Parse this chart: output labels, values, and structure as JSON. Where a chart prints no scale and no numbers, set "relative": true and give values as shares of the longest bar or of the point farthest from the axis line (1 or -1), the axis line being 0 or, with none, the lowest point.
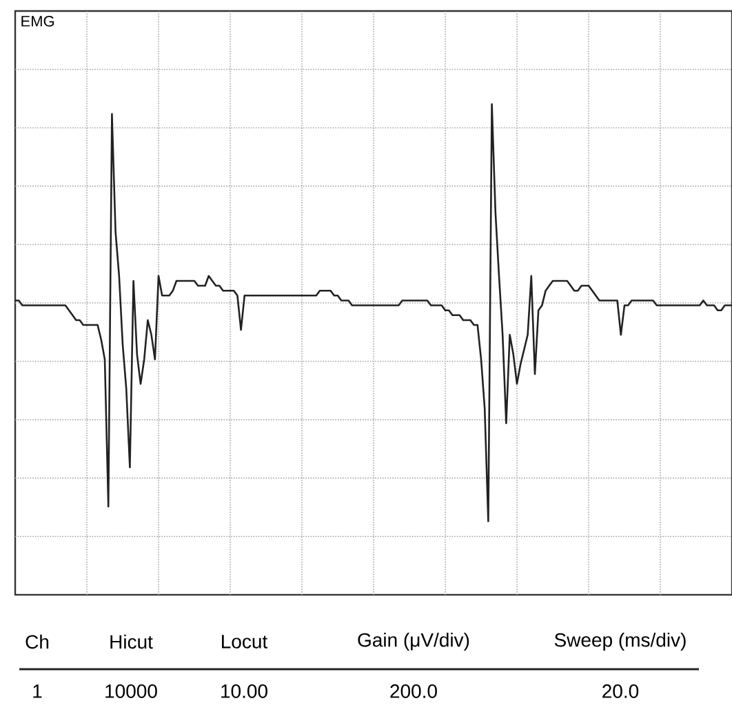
{
  "chart_data": {
    "type": "line",
    "title": "EMG",
    "relative": true,
    "categories": [
      null,
      null,
      null,
      null,
      null,
      null,
      null,
      null,
      null,
      null,
      null,
      null,
      null,
      null,
      null,
      null,
      null,
      null,
      null,
      null,
      null,
      null,
      null,
      null,
      null,
      null,
      null,
      null,
      null,
      null,
      null,
      null,
      null,
      null,
      null,
      null,
      null,
      null,
      null,
      null,
      null,
      null,
      null,
      null,
      null,
      null,
      null,
      null,
      null,
      null,
      null,
      null,
      null,
      null,
      null,
      null,
      null,
      null,
      null,
      null,
      null,
      null,
      null,
      null,
      null,
      null,
      null,
      null,
      null,
      null,
      null,
      null,
      null,
      null,
      null,
      null,
      null,
      null,
      null,
      null,
      null,
      null,
      null,
      null,
      null,
      null,
      null,
      null,
      null,
      null,
      null,
      null,
      null,
      null,
      null,
      null,
      null,
      null,
      null,
      null,
      null,
      null,
      null,
      null,
      null,
      null,
      null,
      null,
      null,
      null,
      null,
      null,
      null,
      null,
      null,
      null,
      null,
      null,
      null,
      null,
      null,
      null,
      null,
      null,
      null,
      null,
      null,
      null,
      null,
      null,
      null,
      null,
      null,
      null,
      null,
      null,
      null,
      null,
      null,
      null,
      null,
      null,
      null,
      null,
      null,
      null,
      null,
      null,
      null,
      null,
      null,
      null,
      null,
      null,
      null,
      null,
      null,
      null,
      null,
      null,
      null,
      null,
      null,
      null,
      null,
      null,
      null,
      null,
      null,
      null,
      null,
      null,
      null,
      null,
      null,
      null,
      null,
      null,
      null,
      null,
      null,
      null,
      null,
      null,
      null,
      null,
      null,
      null,
      null,
      null,
      null,
      null,
      null,
      null,
      null,
      null,
      null,
      null,
      null,
      null,
      null
    ],
    "values": [
      0.6,
      0.6,
      0.59,
      0.59,
      0.59,
      0.59,
      0.59,
      0.59,
      0.59,
      0.59,
      0.59,
      0.59,
      0.59,
      0.59,
      0.59,
      0.58,
      0.57,
      0.56,
      0.56,
      0.55,
      0.55,
      0.55,
      0.55,
      0.55,
      0.52,
      0.48,
      0.18,
      0.98,
      0.74,
      0.65,
      0.51,
      0.42,
      0.26,
      0.64,
      0.49,
      0.43,
      0.48,
      0.56,
      0.53,
      0.48,
      0.65,
      0.61,
      0.61,
      0.61,
      0.62,
      0.64,
      0.64,
      0.64,
      0.64,
      0.64,
      0.64,
      0.63,
      0.63,
      0.63,
      0.65,
      0.64,
      0.63,
      0.63,
      0.62,
      0.62,
      0.62,
      0.62,
      0.61,
      0.54,
      0.61,
      0.61,
      0.61,
      0.61,
      0.61,
      0.61,
      0.61,
      0.61,
      0.61,
      0.61,
      0.61,
      0.61,
      0.61,
      0.61,
      0.61,
      0.61,
      0.61,
      0.61,
      0.61,
      0.61,
      0.61,
      0.62,
      0.62,
      0.62,
      0.62,
      0.61,
      0.61,
      0.6,
      0.6,
      0.6,
      0.59,
      0.59,
      0.59,
      0.59,
      0.59,
      0.59,
      0.59,
      0.59,
      0.59,
      0.59,
      0.59,
      0.59,
      0.59,
      0.59,
      0.6,
      0.6,
      0.6,
      0.6,
      0.6,
      0.6,
      0.6,
      0.6,
      0.59,
      0.59,
      0.59,
      0.59,
      0.58,
      0.58,
      0.57,
      0.57,
      0.57,
      0.56,
      0.56,
      0.56,
      0.55,
      0.55,
      0.48,
      0.38,
      0.15,
      1,
      0.78,
      0.65,
      0.53,
      0.35,
      0.53,
      0.49,
      0.43,
      0.47,
      0.5,
      0.53,
      0.65,
      0.45,
      0.58,
      0.59,
      0.62,
      0.63,
      0.64,
      0.64,
      0.64,
      0.64,
      0.64,
      0.63,
      0.62,
      0.62,
      0.63,
      0.63,
      0.63,
      0.62,
      0.61,
      0.6,
      0.6,
      0.6,
      0.6,
      0.6,
      0.6,
      0.53,
      0.59,
      0.59,
      0.6,
      0.6,
      0.6,
      0.6,
      0.6,
      0.6,
      0.6,
      0.59,
      0.59,
      0.59,
      0.59,
      0.59,
      0.59,
      0.59,
      0.59,
      0.59,
      0.59,
      0.59,
      0.59,
      0.59,
      0.6,
      0.59,
      0.59,
      0.59,
      0.58,
      0.58,
      0.59,
      0.59,
      0.59
    ],
    "color": "#222222",
    "line_style": "solid",
    "marker": "none",
    "grid": true,
    "annotations": [
      "Ch",
      "Hicut",
      "Locut",
      "Gain (μV/div)",
      "Sweep (ms/div)",
      "1",
      "10000",
      "10.00",
      "200.0",
      "20.0"
    ]
  }
}
